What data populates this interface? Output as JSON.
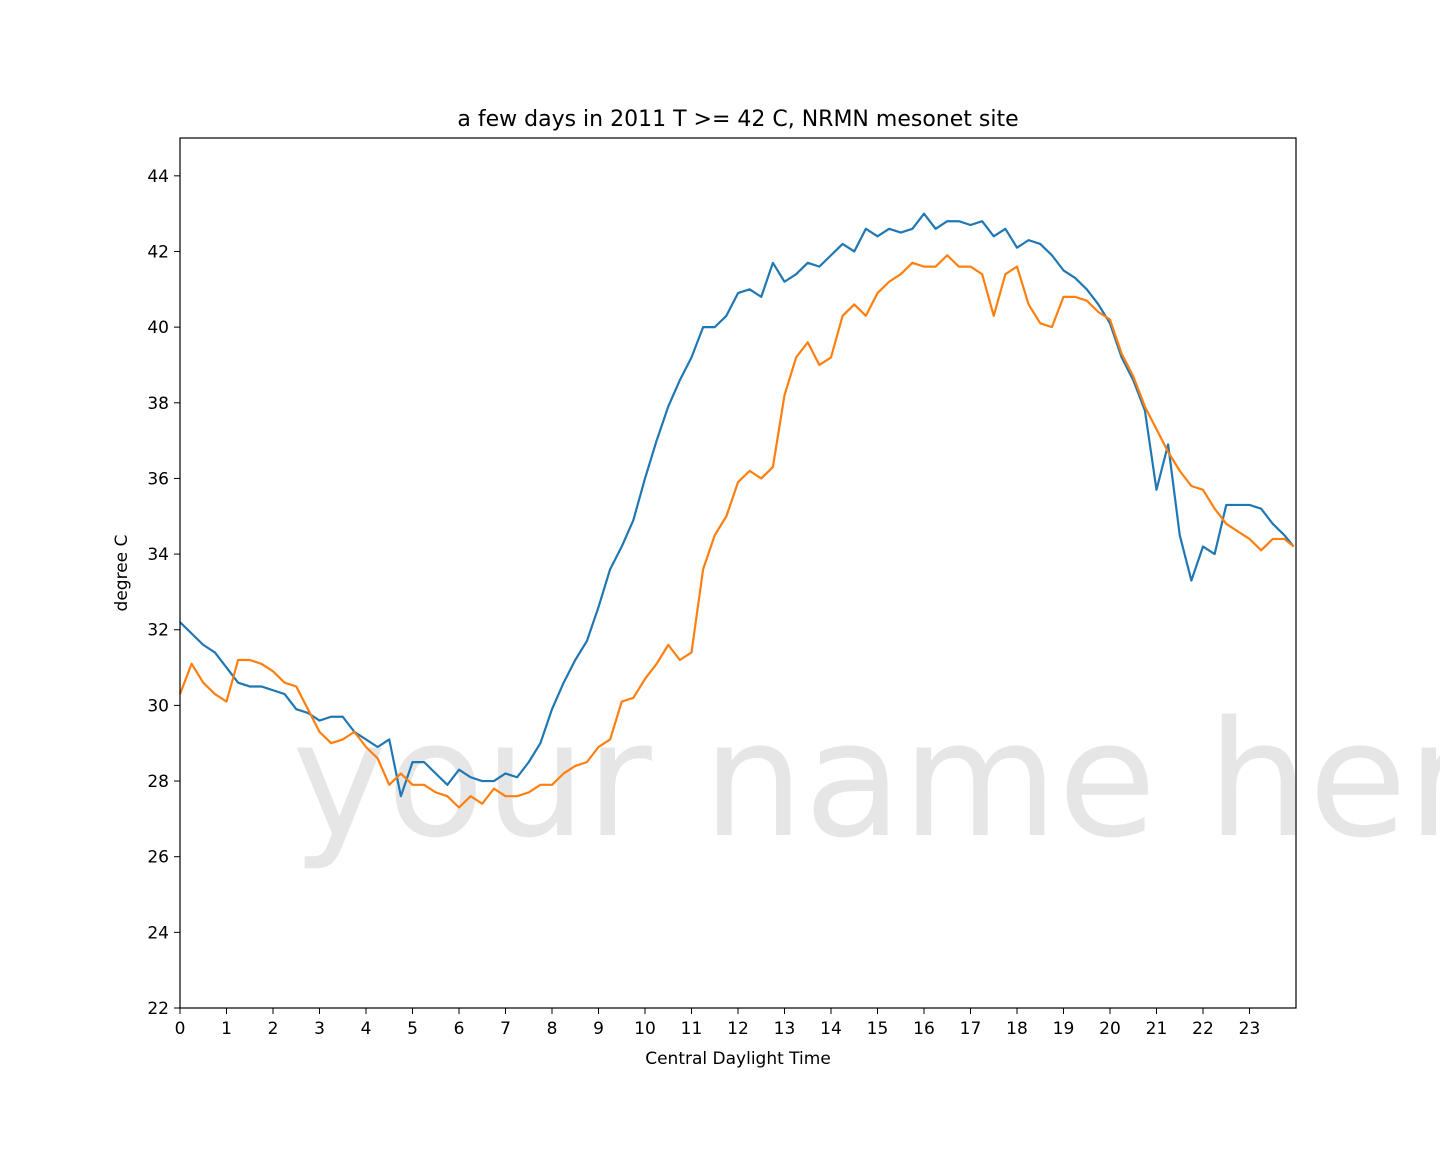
{
  "chart_data": {
    "type": "line",
    "title": "a few days in 2011 T >= 42 C, NRMN mesonet site",
    "xlabel": "Central Daylight Time",
    "ylabel": "degree C",
    "watermark": "your name here",
    "x": [
      0,
      0.25,
      0.5,
      0.75,
      1,
      1.25,
      1.5,
      1.75,
      2,
      2.25,
      2.5,
      2.75,
      3,
      3.25,
      3.5,
      3.75,
      4,
      4.25,
      4.5,
      4.75,
      5,
      5.25,
      5.5,
      5.75,
      6,
      6.25,
      6.5,
      6.75,
      7,
      7.25,
      7.5,
      7.75,
      8,
      8.25,
      8.5,
      8.75,
      9,
      9.25,
      9.5,
      9.75,
      10,
      10.25,
      10.5,
      10.75,
      11,
      11.25,
      11.5,
      11.75,
      12,
      12.25,
      12.5,
      12.75,
      13,
      13.25,
      13.5,
      13.75,
      14,
      14.25,
      14.5,
      14.75,
      15,
      15.25,
      15.5,
      15.75,
      16,
      16.25,
      16.5,
      16.75,
      17,
      17.25,
      17.5,
      17.75,
      18,
      18.25,
      18.5,
      18.75,
      19,
      19.25,
      19.5,
      19.75,
      20,
      20.25,
      20.5,
      20.75,
      21,
      21.25,
      21.5,
      21.75,
      22,
      22.25,
      22.5,
      22.75,
      23,
      23.25,
      23.5,
      23.75,
      23.95
    ],
    "series": [
      {
        "color": "#1f77b4",
        "values": [
          32.2,
          31.9,
          31.6,
          31.4,
          31.0,
          30.6,
          30.5,
          30.5,
          30.4,
          30.3,
          29.9,
          29.8,
          29.6,
          29.7,
          29.7,
          29.3,
          29.1,
          28.9,
          29.1,
          27.6,
          28.5,
          28.5,
          28.2,
          27.9,
          28.3,
          28.1,
          28.0,
          28.0,
          28.2,
          28.1,
          28.5,
          29.0,
          29.9,
          30.6,
          31.2,
          31.7,
          32.6,
          33.6,
          34.2,
          34.9,
          36.0,
          37.0,
          37.9,
          38.6,
          39.2,
          40.0,
          40.0,
          40.3,
          40.9,
          41.0,
          40.8,
          41.7,
          41.2,
          41.4,
          41.7,
          41.6,
          41.9,
          42.2,
          42.0,
          42.6,
          42.4,
          42.6,
          42.5,
          42.6,
          43.0,
          42.6,
          42.8,
          42.8,
          42.7,
          42.8,
          42.4,
          42.6,
          42.1,
          42.3,
          42.2,
          41.9,
          41.5,
          41.3,
          41.0,
          40.6,
          40.1,
          39.2,
          38.6,
          37.8,
          35.7,
          36.9,
          34.5,
          33.3,
          34.2,
          34.0,
          35.3,
          35.3,
          35.3,
          35.2,
          34.8,
          34.5,
          34.2
        ]
      },
      {
        "color": "#ff7f0e",
        "values": [
          30.3,
          31.1,
          30.6,
          30.3,
          30.1,
          31.2,
          31.2,
          31.1,
          30.9,
          30.6,
          30.5,
          29.9,
          29.3,
          29.0,
          29.1,
          29.3,
          28.9,
          28.6,
          27.9,
          28.2,
          27.9,
          27.9,
          27.7,
          27.6,
          27.3,
          27.6,
          27.4,
          27.8,
          27.6,
          27.6,
          27.7,
          27.9,
          27.9,
          28.2,
          28.4,
          28.5,
          28.9,
          29.1,
          30.1,
          30.2,
          30.7,
          31.1,
          31.6,
          31.2,
          31.4,
          33.6,
          34.5,
          35.0,
          35.9,
          36.2,
          36.0,
          36.3,
          38.2,
          39.2,
          39.6,
          39.0,
          39.2,
          40.3,
          40.6,
          40.3,
          40.9,
          41.2,
          41.4,
          41.7,
          41.6,
          41.6,
          41.9,
          41.6,
          41.6,
          41.4,
          40.3,
          41.4,
          41.6,
          40.6,
          40.1,
          40.0,
          40.8,
          40.8,
          40.7,
          40.4,
          40.2,
          39.3,
          38.7,
          37.9,
          37.3,
          36.7,
          36.2,
          35.8,
          35.7,
          35.2,
          34.8,
          34.6,
          34.4,
          34.1,
          34.4,
          34.4,
          34.2
        ]
      }
    ],
    "xlim": [
      0,
      24
    ],
    "xticks": [
      0,
      1,
      2,
      3,
      4,
      5,
      6,
      7,
      8,
      9,
      10,
      11,
      12,
      13,
      14,
      15,
      16,
      17,
      18,
      19,
      20,
      21,
      22,
      23
    ],
    "ylim": [
      22,
      45
    ],
    "yticks": [
      22,
      24,
      26,
      28,
      30,
      32,
      34,
      36,
      38,
      40,
      42,
      44
    ]
  }
}
